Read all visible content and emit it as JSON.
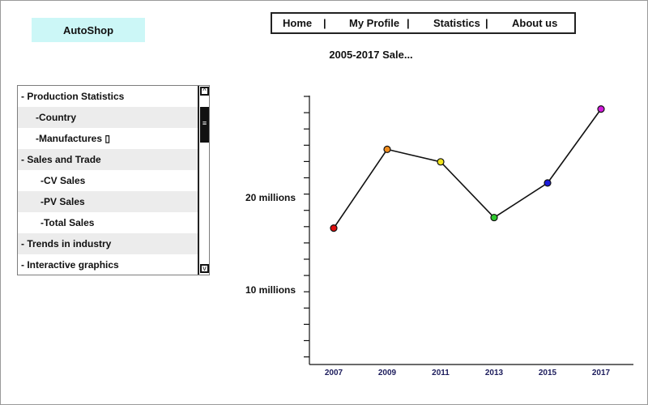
{
  "app": {
    "logo": "AutoShop"
  },
  "nav": {
    "items": [
      "Home",
      "My Profile",
      "Statistics",
      "About us"
    ],
    "separator": "|"
  },
  "sidebar": {
    "items": [
      {
        "label": "- Production Statistics",
        "indent": 0
      },
      {
        "label": "-Country",
        "indent": 1
      },
      {
        "label": "-Manufactures ▯",
        "indent": 1
      },
      {
        "label": "- Sales and Trade",
        "indent": 0
      },
      {
        "label": "-CV Sales",
        "indent": 2
      },
      {
        "label": "-PV Sales",
        "indent": 2
      },
      {
        "label": "-Total Sales",
        "indent": 2
      },
      {
        "label": "- Trends in industry",
        "indent": 0
      },
      {
        "label": "- Interactive graphics",
        "indent": 0
      }
    ],
    "scroll_up_icon": "chevron-up-icon",
    "scroll_down_icon": "chevron-down-icon"
  },
  "chart_data": {
    "type": "line",
    "title": "2005-2017 Sale...",
    "xlabel": "",
    "ylabel": "",
    "categories": [
      "2007",
      "2009",
      "2011",
      "2013",
      "2015",
      "2017"
    ],
    "series": [
      {
        "values": [
          15.2,
          23.4,
          22.1,
          16.3,
          19.9,
          27.6
        ]
      }
    ],
    "point_colors": [
      "#e01010",
      "#f08c1c",
      "#f0e41c",
      "#2ec82e",
      "#1c1cdc",
      "#d21cdc"
    ],
    "y_tick_labels": [
      {
        "label": "20 millions",
        "value": 20
      },
      {
        "label": "10 millions",
        "value": 10
      }
    ],
    "ylim": [
      1,
      29
    ],
    "grid": false
  }
}
